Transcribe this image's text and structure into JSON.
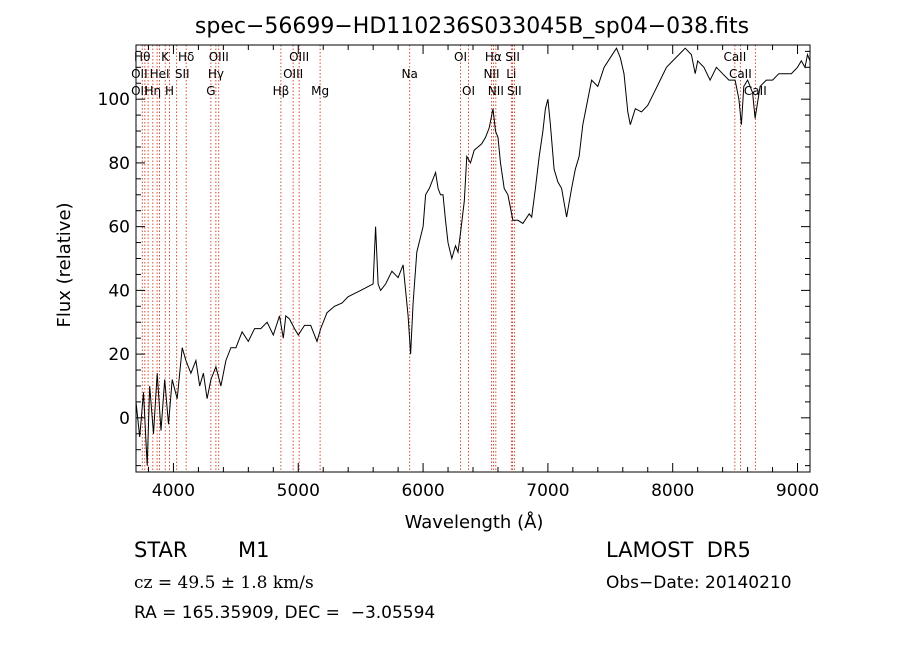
{
  "chart_data": {
    "type": "line",
    "title": "spec−56699−HD110236S033045B_sp04−038.fits",
    "xlabel": "Wavelength (Å)",
    "ylabel": "Flux (relative)",
    "xlim": [
      3700,
      9100
    ],
    "ylim": [
      -17,
      117
    ],
    "x_ticks": [
      4000,
      5000,
      6000,
      7000,
      8000,
      9000
    ],
    "y_ticks": [
      0,
      20,
      40,
      60,
      80,
      100
    ],
    "series": [
      {
        "line_color": "#000000",
        "points": [
          [
            3700,
            5
          ],
          [
            3730,
            -6
          ],
          [
            3760,
            8
          ],
          [
            3790,
            -15
          ],
          [
            3810,
            10
          ],
          [
            3840,
            -5
          ],
          [
            3870,
            14
          ],
          [
            3900,
            -4
          ],
          [
            3930,
            12
          ],
          [
            3960,
            -2
          ],
          [
            3990,
            12
          ],
          [
            4030,
            6
          ],
          [
            4070,
            22
          ],
          [
            4100,
            18
          ],
          [
            4140,
            14
          ],
          [
            4180,
            18
          ],
          [
            4210,
            10
          ],
          [
            4240,
            14
          ],
          [
            4270,
            6
          ],
          [
            4300,
            12
          ],
          [
            4340,
            16
          ],
          [
            4380,
            10
          ],
          [
            4420,
            18
          ],
          [
            4460,
            22
          ],
          [
            4500,
            22
          ],
          [
            4550,
            27
          ],
          [
            4600,
            24
          ],
          [
            4650,
            28
          ],
          [
            4700,
            28
          ],
          [
            4750,
            30
          ],
          [
            4800,
            26
          ],
          [
            4850,
            32
          ],
          [
            4880,
            25
          ],
          [
            4900,
            32
          ],
          [
            4930,
            31
          ],
          [
            4970,
            28
          ],
          [
            5000,
            26
          ],
          [
            5050,
            29
          ],
          [
            5100,
            29
          ],
          [
            5150,
            24
          ],
          [
            5180,
            28
          ],
          [
            5230,
            33
          ],
          [
            5290,
            35
          ],
          [
            5350,
            36
          ],
          [
            5400,
            38
          ],
          [
            5450,
            39
          ],
          [
            5500,
            40
          ],
          [
            5550,
            41
          ],
          [
            5600,
            42
          ],
          [
            5620,
            60
          ],
          [
            5640,
            42
          ],
          [
            5660,
            40
          ],
          [
            5700,
            42
          ],
          [
            5750,
            46
          ],
          [
            5800,
            44
          ],
          [
            5840,
            48
          ],
          [
            5860,
            40
          ],
          [
            5880,
            32
          ],
          [
            5900,
            20
          ],
          [
            5920,
            36
          ],
          [
            5950,
            52
          ],
          [
            6000,
            60
          ],
          [
            6020,
            70
          ],
          [
            6050,
            72
          ],
          [
            6080,
            75
          ],
          [
            6100,
            77
          ],
          [
            6120,
            72
          ],
          [
            6140,
            70
          ],
          [
            6160,
            70
          ],
          [
            6180,
            62
          ],
          [
            6200,
            55
          ],
          [
            6230,
            50
          ],
          [
            6260,
            54
          ],
          [
            6280,
            52
          ],
          [
            6300,
            58
          ],
          [
            6330,
            68
          ],
          [
            6350,
            82
          ],
          [
            6380,
            80
          ],
          [
            6410,
            84
          ],
          [
            6440,
            85
          ],
          [
            6470,
            86
          ],
          [
            6500,
            88
          ],
          [
            6530,
            91
          ],
          [
            6560,
            97
          ],
          [
            6580,
            90
          ],
          [
            6600,
            88
          ],
          [
            6620,
            80
          ],
          [
            6650,
            72
          ],
          [
            6680,
            70
          ],
          [
            6700,
            66
          ],
          [
            6720,
            62
          ],
          [
            6760,
            62
          ],
          [
            6800,
            61
          ],
          [
            6850,
            64
          ],
          [
            6870,
            63
          ],
          [
            6900,
            72
          ],
          [
            6930,
            82
          ],
          [
            6960,
            90
          ],
          [
            6980,
            97
          ],
          [
            7000,
            100
          ],
          [
            7020,
            92
          ],
          [
            7050,
            78
          ],
          [
            7080,
            74
          ],
          [
            7110,
            72
          ],
          [
            7150,
            63
          ],
          [
            7190,
            72
          ],
          [
            7220,
            78
          ],
          [
            7250,
            82
          ],
          [
            7280,
            92
          ],
          [
            7310,
            98
          ],
          [
            7350,
            106
          ],
          [
            7400,
            104
          ],
          [
            7450,
            110
          ],
          [
            7500,
            113
          ],
          [
            7550,
            116
          ],
          [
            7580,
            113
          ],
          [
            7610,
            108
          ],
          [
            7640,
            96
          ],
          [
            7660,
            92
          ],
          [
            7700,
            97
          ],
          [
            7750,
            96
          ],
          [
            7800,
            98
          ],
          [
            7850,
            102
          ],
          [
            7900,
            106
          ],
          [
            7950,
            110
          ],
          [
            8000,
            112
          ],
          [
            8050,
            114
          ],
          [
            8100,
            116
          ],
          [
            8150,
            114
          ],
          [
            8180,
            108
          ],
          [
            8200,
            112
          ],
          [
            8250,
            110
          ],
          [
            8300,
            106
          ],
          [
            8350,
            110
          ],
          [
            8400,
            108
          ],
          [
            8450,
            106
          ],
          [
            8500,
            106
          ],
          [
            8530,
            100
          ],
          [
            8550,
            92
          ],
          [
            8570,
            104
          ],
          [
            8600,
            106
          ],
          [
            8640,
            102
          ],
          [
            8660,
            94
          ],
          [
            8700,
            104
          ],
          [
            8750,
            106
          ],
          [
            8800,
            106
          ],
          [
            8850,
            108
          ],
          [
            8900,
            108
          ],
          [
            8950,
            108
          ],
          [
            9000,
            110
          ],
          [
            9030,
            112
          ],
          [
            9060,
            110
          ],
          [
            9080,
            114
          ],
          [
            9100,
            112
          ]
        ]
      }
    ],
    "line_markers": {
      "color": "#cc2200",
      "lines": [
        3750,
        3771,
        3797,
        3835,
        3869,
        3889,
        3934,
        3969,
        4026,
        4102,
        4300,
        4340,
        4363,
        4861,
        4959,
        5007,
        5175,
        5893,
        6300,
        6364,
        6548,
        6563,
        6583,
        6707,
        6717,
        6731,
        8498,
        8542,
        8662
      ],
      "labels": [
        {
          "text": "Hθ",
          "x": 3750,
          "row": 1
        },
        {
          "text": "K",
          "x": 3933,
          "row": 1
        },
        {
          "text": "Hδ",
          "x": 4102,
          "row": 1
        },
        {
          "text": "OIII",
          "x": 4363,
          "row": 1
        },
        {
          "text": "OIII",
          "x": 5007,
          "row": 1
        },
        {
          "text": "OI",
          "x": 6300,
          "row": 1
        },
        {
          "text": "Hα",
          "x": 6563,
          "row": 1
        },
        {
          "text": "SII",
          "x": 6717,
          "row": 1
        },
        {
          "text": "CaII",
          "x": 8498,
          "row": 1
        },
        {
          "text": "OII",
          "x": 3727,
          "row": 2
        },
        {
          "text": "HeI",
          "x": 3889,
          "row": 2
        },
        {
          "text": "SII",
          "x": 4070,
          "row": 2
        },
        {
          "text": "Hγ",
          "x": 4340,
          "row": 2
        },
        {
          "text": "OIII",
          "x": 4959,
          "row": 2
        },
        {
          "text": "Na",
          "x": 5893,
          "row": 2
        },
        {
          "text": "NII",
          "x": 6548,
          "row": 2
        },
        {
          "text": "Li",
          "x": 6707,
          "row": 2
        },
        {
          "text": "CaII",
          "x": 8542,
          "row": 2
        },
        {
          "text": "OII",
          "x": 3727,
          "row": 3
        },
        {
          "text": "Hη",
          "x": 3835,
          "row": 3
        },
        {
          "text": "H",
          "x": 3969,
          "row": 3
        },
        {
          "text": "G",
          "x": 4300,
          "row": 3
        },
        {
          "text": "Hβ",
          "x": 4861,
          "row": 3
        },
        {
          "text": "Mg",
          "x": 5175,
          "row": 3
        },
        {
          "text": "OI",
          "x": 6364,
          "row": 3
        },
        {
          "text": "NII",
          "x": 6583,
          "row": 3
        },
        {
          "text": "SII",
          "x": 6731,
          "row": 3
        },
        {
          "text": "CaII",
          "x": 8662,
          "row": 3
        }
      ]
    }
  },
  "info": {
    "object_class": "STAR",
    "subclass": "M1",
    "survey": "LAMOST  DR5",
    "cz": "cz = 49.5 ± 1.8 km/s",
    "obs_date": "Obs−Date: 20140210",
    "coords": "RA = 165.35909, DEC =  −3.05594"
  }
}
